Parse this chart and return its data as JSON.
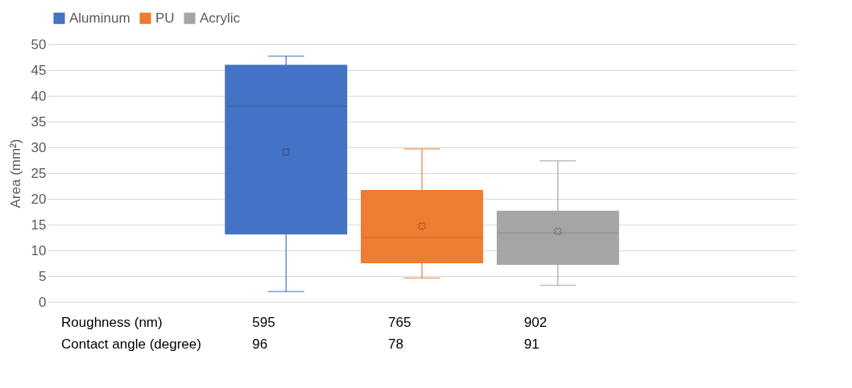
{
  "chart_data": {
    "type": "box",
    "ylabel": "Area (mm²)",
    "categories": [
      null
    ],
    "series": [
      {
        "name": "Aluminum",
        "color": "#4472c4",
        "boxes": [
          {
            "low": 2.0,
            "q1": 13.1,
            "median": 38.0,
            "q3": 46.0,
            "high": 47.7,
            "mean": 29.1
          }
        ]
      },
      {
        "name": "PU",
        "color": "#ed7d31",
        "boxes": [
          {
            "low": 4.6,
            "q1": 7.5,
            "median": 12.5,
            "q3": 21.7,
            "high": 29.7,
            "mean": 14.7
          }
        ]
      },
      {
        "name": "Acrylic",
        "color": "#a5a5a5",
        "boxes": [
          {
            "low": 3.2,
            "q1": 7.2,
            "median": 13.4,
            "q3": 17.7,
            "high": 27.4,
            "mean": 13.7
          }
        ]
      }
    ],
    "ylim": [
      0,
      50
    ],
    "yticks": [
      0,
      5,
      10,
      15,
      20,
      25,
      30,
      35,
      40,
      45,
      50
    ],
    "grid": "y",
    "legend": "top",
    "tick_labels": "y",
    "annotations": [
      "Roughness (nm)",
      "595",
      "765",
      "902",
      "Contact angle (degree)",
      "96",
      "78",
      "91"
    ]
  }
}
